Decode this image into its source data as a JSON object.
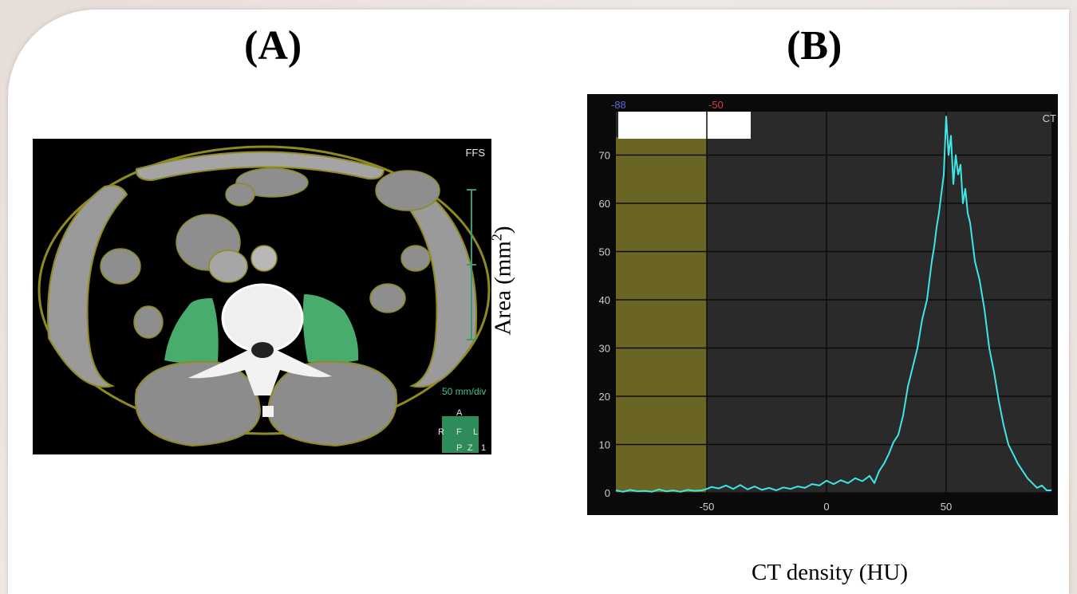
{
  "panels": {
    "a_label": "(A)",
    "b_label": "(B)"
  },
  "ct_image": {
    "orientation": "FFS",
    "scale_text": "50 mm/div",
    "compass": {
      "top": "A",
      "left": "R",
      "center": "F",
      "right": "L",
      "bottom_left": "P",
      "bottom_center": "Z",
      "bottom_right": "1"
    },
    "highlight_color": "#4fbf78",
    "outline_color": "#8f8a1e"
  },
  "chart_data": {
    "type": "area",
    "title": "",
    "xlabel": "CT density (HU)",
    "ylabel_main": "Area (mm",
    "ylabel_sup": "2",
    "ylabel_end": ")",
    "xlim": [
      -88,
      94
    ],
    "ylim": [
      0,
      79
    ],
    "x_ticks": [
      "-50",
      "0",
      "50"
    ],
    "x_tick_values": [
      -50,
      0,
      50
    ],
    "y_ticks": [
      "0",
      "10",
      "20",
      "30",
      "40",
      "50",
      "60",
      "70"
    ],
    "y_tick_values": [
      0,
      10,
      20,
      30,
      40,
      50,
      60,
      70
    ],
    "grid": true,
    "range_low_label": "-88",
    "range_high_label": "-50",
    "corner_label": "CT",
    "shaded_range": [
      -88,
      -50
    ],
    "colors": {
      "background": "#2a2a2a",
      "frame": "#0a0a0a",
      "line": "#3ee6e6",
      "shade": "#6b6523",
      "low_label": "#5a6ad8",
      "high_label": "#d83a3a"
    },
    "series": [
      {
        "x": [
          -88,
          -85,
          -82,
          -79,
          -76,
          -73,
          -70,
          -67,
          -64,
          -61,
          -58,
          -55,
          -52,
          -50,
          -48,
          -45,
          -42,
          -39,
          -36,
          -33,
          -30,
          -27,
          -24,
          -21,
          -18,
          -15,
          -12,
          -9,
          -6,
          -3,
          0,
          3,
          6,
          9,
          12,
          15,
          18,
          20,
          22,
          24,
          26,
          28,
          30,
          32,
          34,
          36,
          38,
          40,
          42,
          44,
          45,
          46,
          47,
          48,
          49,
          50,
          51,
          52,
          53,
          54,
          55,
          56,
          57,
          58,
          59,
          60,
          62,
          64,
          66,
          68,
          70,
          72,
          74,
          76,
          78,
          80,
          82,
          84,
          86,
          88,
          90,
          92,
          94
        ],
        "values": [
          0.5,
          0.2,
          0.6,
          0.3,
          0.4,
          0.2,
          0.7,
          0.3,
          0.5,
          0.2,
          0.6,
          0.4,
          0.5,
          0.8,
          1.2,
          0.9,
          1.5,
          0.8,
          1.6,
          0.7,
          1.3,
          0.6,
          1.0,
          0.5,
          1.1,
          0.8,
          1.3,
          1.0,
          1.8,
          1.5,
          2.5,
          1.8,
          2.6,
          2.0,
          3.0,
          2.4,
          3.5,
          2.0,
          4.5,
          6.0,
          8.0,
          10.5,
          12.0,
          16.0,
          22.0,
          26.0,
          30.0,
          36.0,
          40.0,
          48.0,
          51.0,
          55.0,
          58.0,
          62.0,
          66.0,
          78.0,
          70.0,
          74.0,
          64.0,
          70.0,
          66.0,
          68.0,
          60.0,
          63.0,
          58.0,
          56.0,
          48.0,
          44.0,
          38.0,
          30.0,
          25.0,
          19.0,
          14.0,
          10.0,
          8.0,
          6.0,
          4.5,
          3.0,
          2.0,
          1.0,
          1.5,
          0.5,
          0.5
        ]
      }
    ]
  }
}
